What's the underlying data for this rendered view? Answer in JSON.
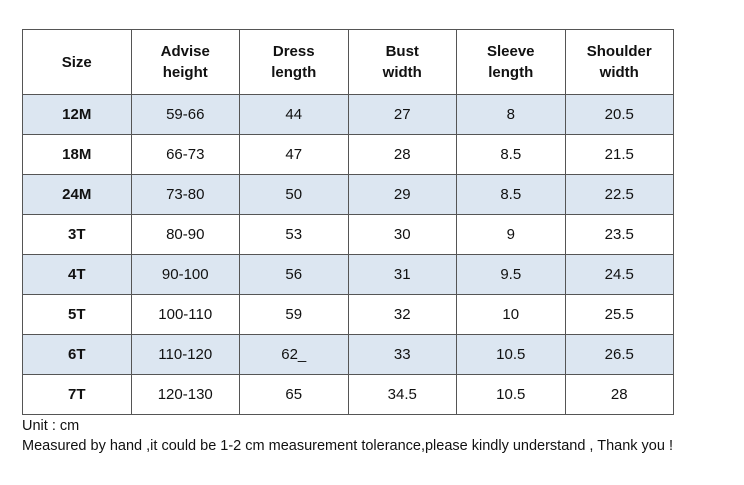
{
  "table": {
    "header": [
      "Size",
      "Advise height",
      "Dress length",
      "Bust width",
      "Sleeve length",
      "Shoulder width"
    ],
    "rows": [
      [
        "12M",
        "59-66",
        "44",
        "27",
        "8",
        "20.5"
      ],
      [
        "18M",
        "66-73",
        "47",
        "28",
        "8.5",
        "21.5"
      ],
      [
        "24M",
        "73-80",
        "50",
        "29",
        "8.5",
        "22.5"
      ],
      [
        "3T",
        "80-90",
        "53",
        "30",
        "9",
        "23.5"
      ],
      [
        "4T",
        "90-100",
        "56",
        "31",
        "9.5",
        "24.5"
      ],
      [
        "5T",
        "100-110",
        "59",
        "32",
        "10",
        "25.5"
      ],
      [
        "6T",
        "110-120",
        "62_",
        "33",
        "10.5",
        "26.5"
      ],
      [
        "7T",
        "120-130",
        "65",
        "34.5",
        "10.5",
        "28"
      ]
    ]
  },
  "notes": [
    "Unit : cm",
    "Measured by hand ,it could be 1-2 cm measurement tolerance,please kindly understand , Thank you !"
  ]
}
